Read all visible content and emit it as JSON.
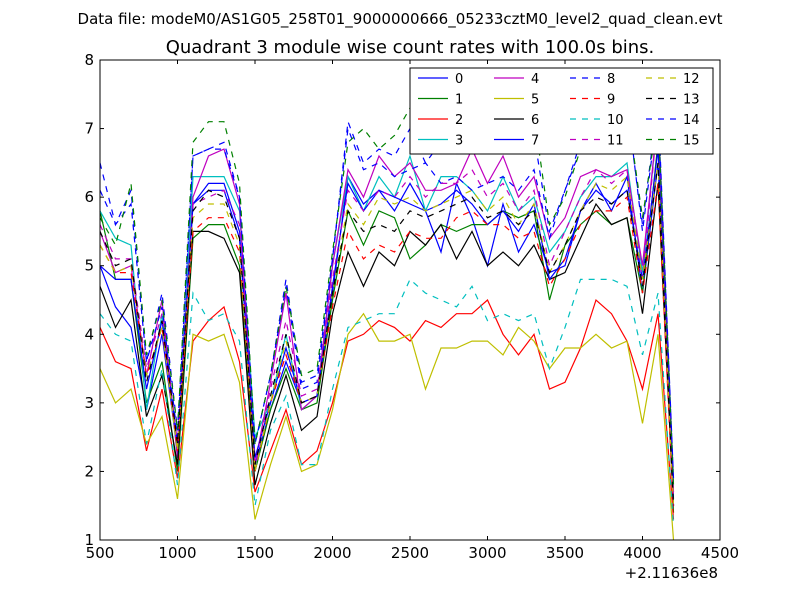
{
  "header": {
    "suptitle": "Data file: modeM0/AS1G05_258T01_9000000666_05233cztM0_level2_quad_clean.evt"
  },
  "chart_data": {
    "type": "line",
    "title": "Quadrant 3 module wise count rates with 100.0s bins.",
    "xlabel": "",
    "ylabel": "",
    "x_offset_label": "+2.11636e8",
    "xlim": [
      500,
      4500
    ],
    "ylim": [
      1,
      8
    ],
    "xticks": [
      500,
      1000,
      1500,
      2000,
      2500,
      3000,
      3500,
      4000,
      4500
    ],
    "yticks": [
      1,
      2,
      3,
      4,
      5,
      6,
      7,
      8
    ],
    "grid": false,
    "legend_position": "top-right",
    "legend_columns": 4,
    "x": [
      500,
      600,
      700,
      800,
      900,
      1000,
      1100,
      1200,
      1300,
      1400,
      1500,
      1600,
      1700,
      1800,
      1900,
      2000,
      2100,
      2200,
      2300,
      2400,
      2500,
      2600,
      2700,
      2800,
      2900,
      3000,
      3100,
      3200,
      3300,
      3400,
      3500,
      3600,
      3700,
      3800,
      3900,
      4000,
      4100,
      4200
    ],
    "series": [
      {
        "name": "0",
        "color": "#0000ff",
        "dashed": false,
        "values": [
          5.0,
          4.4,
          4.1,
          2.9,
          4.0,
          2.3,
          5.9,
          6.2,
          6.2,
          5.5,
          2.1,
          2.9,
          3.6,
          3.0,
          3.1,
          4.6,
          6.3,
          5.9,
          6.1,
          5.8,
          6.2,
          5.8,
          5.2,
          6.2,
          5.7,
          5.0,
          5.9,
          5.2,
          5.6,
          4.9,
          5.0,
          5.8,
          6.2,
          5.8,
          6.3,
          4.6,
          6.5,
          1.5
        ]
      },
      {
        "name": "1",
        "color": "#008000",
        "dashed": false,
        "values": [
          5.8,
          4.8,
          4.8,
          3.0,
          3.6,
          2.0,
          5.4,
          5.6,
          5.6,
          5.0,
          2.0,
          2.9,
          3.5,
          2.9,
          3.0,
          4.5,
          5.8,
          5.3,
          5.8,
          5.7,
          5.1,
          5.3,
          5.6,
          5.5,
          5.6,
          5.6,
          5.8,
          5.7,
          5.8,
          4.5,
          5.3,
          5.6,
          5.8,
          5.6,
          5.7,
          4.6,
          6.8,
          1.4
        ]
      },
      {
        "name": "2",
        "color": "#ff0000",
        "dashed": false,
        "values": [
          4.1,
          3.6,
          3.5,
          2.3,
          3.2,
          1.9,
          3.9,
          4.2,
          4.4,
          3.6,
          1.7,
          2.3,
          2.9,
          2.1,
          2.3,
          3.0,
          3.9,
          4.0,
          4.2,
          4.1,
          3.9,
          4.2,
          4.1,
          4.3,
          4.3,
          4.5,
          4.0,
          3.7,
          4.0,
          3.2,
          3.3,
          3.8,
          4.5,
          4.3,
          3.9,
          3.2,
          4.3,
          1.3
        ]
      },
      {
        "name": "3",
        "color": "#00bfbf",
        "dashed": false,
        "values": [
          5.8,
          5.4,
          5.3,
          2.9,
          4.3,
          2.2,
          6.3,
          6.3,
          6.3,
          5.8,
          2.5,
          3.0,
          4.0,
          2.9,
          3.1,
          5.0,
          6.3,
          5.8,
          6.3,
          6.0,
          6.6,
          5.8,
          6.3,
          6.3,
          6.1,
          5.8,
          6.3,
          5.8,
          6.0,
          5.2,
          5.5,
          6.0,
          6.3,
          6.3,
          6.5,
          4.9,
          7.2,
          1.6
        ]
      },
      {
        "name": "4",
        "color": "#bf00bf",
        "dashed": false,
        "values": [
          5.5,
          4.9,
          5.0,
          3.4,
          4.5,
          2.2,
          6.0,
          6.6,
          6.7,
          5.9,
          2.1,
          3.3,
          4.6,
          2.9,
          3.1,
          5.0,
          6.4,
          6.0,
          6.6,
          6.3,
          6.5,
          6.1,
          6.1,
          6.2,
          6.7,
          6.2,
          6.6,
          6.0,
          6.3,
          5.4,
          5.7,
          6.3,
          6.4,
          6.3,
          6.4,
          5.0,
          7.2,
          1.7
        ]
      },
      {
        "name": "5",
        "color": "#bfbf00",
        "dashed": false,
        "values": [
          3.5,
          3.0,
          3.2,
          2.4,
          2.8,
          1.6,
          4.0,
          3.9,
          4.0,
          3.3,
          1.3,
          2.1,
          2.8,
          2.0,
          2.1,
          2.9,
          4.0,
          4.3,
          3.9,
          3.9,
          4.0,
          3.2,
          3.8,
          3.8,
          3.9,
          3.9,
          3.7,
          4.1,
          3.9,
          3.5,
          3.8,
          3.8,
          4.0,
          3.8,
          3.9,
          2.7,
          4.0,
          1.0
        ]
      },
      {
        "name": "6",
        "color": "#000000",
        "dashed": false,
        "values": [
          4.7,
          4.1,
          4.5,
          2.8,
          3.4,
          2.1,
          5.5,
          5.5,
          5.4,
          4.9,
          1.8,
          2.7,
          3.4,
          2.6,
          2.8,
          4.3,
          5.2,
          4.7,
          5.2,
          5.0,
          5.5,
          5.3,
          5.6,
          5.1,
          5.5,
          5.0,
          5.2,
          5.0,
          5.3,
          4.8,
          4.9,
          5.4,
          5.9,
          5.6,
          5.7,
          4.3,
          6.2,
          1.5
        ]
      },
      {
        "name": "7",
        "color": "#0000ff",
        "dashed": false,
        "values": [
          5.0,
          4.8,
          4.8,
          3.2,
          4.2,
          2.4,
          5.9,
          6.1,
          6.1,
          5.4,
          2.2,
          3.0,
          3.8,
          3.0,
          3.1,
          4.7,
          6.2,
          5.8,
          6.1,
          6.0,
          5.9,
          5.8,
          5.9,
          6.1,
          5.9,
          5.6,
          5.8,
          5.5,
          5.9,
          4.8,
          5.1,
          5.8,
          6.1,
          5.9,
          6.1,
          4.8,
          6.7,
          1.5
        ]
      },
      {
        "name": "8",
        "color": "#0000ff",
        "dashed": true,
        "values": [
          6.1,
          5.6,
          5.9,
          3.6,
          4.4,
          2.5,
          6.6,
          6.7,
          6.8,
          6.0,
          2.4,
          3.4,
          4.7,
          3.2,
          3.3,
          5.1,
          7.0,
          6.4,
          6.5,
          6.3,
          6.4,
          6.5,
          6.2,
          6.3,
          6.1,
          6.2,
          6.3,
          6.1,
          6.4,
          5.4,
          6.1,
          6.8,
          7.0,
          7.2,
          7.4,
          5.5,
          7.3,
          1.9
        ]
      },
      {
        "name": "9",
        "color": "#ff0000",
        "dashed": true,
        "values": [
          5.3,
          4.9,
          4.9,
          3.4,
          4.1,
          2.3,
          5.5,
          5.7,
          5.7,
          5.2,
          2.0,
          3.0,
          3.7,
          3.0,
          3.1,
          4.4,
          5.5,
          5.1,
          5.3,
          5.2,
          5.5,
          5.4,
          5.4,
          5.7,
          5.8,
          5.6,
          5.6,
          5.4,
          5.5,
          4.7,
          5.1,
          5.6,
          5.8,
          5.8,
          6.0,
          4.6,
          6.2,
          1.4
        ]
      },
      {
        "name": "10",
        "color": "#00bfbf",
        "dashed": true,
        "values": [
          4.3,
          4.0,
          3.9,
          2.4,
          3.5,
          1.8,
          4.6,
          4.2,
          4.3,
          3.9,
          1.5,
          2.6,
          3.1,
          2.1,
          2.1,
          3.2,
          4.1,
          4.2,
          4.3,
          4.3,
          4.8,
          4.6,
          4.5,
          4.4,
          4.7,
          4.2,
          4.3,
          4.2,
          4.3,
          3.5,
          4.1,
          4.8,
          4.8,
          4.8,
          4.7,
          3.7,
          4.6,
          1.2
        ]
      },
      {
        "name": "11",
        "color": "#bf00bf",
        "dashed": true,
        "values": [
          5.6,
          5.1,
          5.1,
          3.5,
          4.3,
          2.4,
          5.9,
          6.0,
          6.1,
          5.6,
          2.1,
          3.2,
          4.2,
          3.1,
          3.2,
          4.8,
          6.1,
          5.8,
          6.1,
          6.0,
          6.3,
          6.0,
          6.2,
          6.2,
          6.4,
          6.0,
          6.2,
          5.8,
          6.1,
          5.0,
          5.5,
          6.0,
          6.4,
          6.2,
          6.4,
          4.8,
          7.2,
          1.6
        ]
      },
      {
        "name": "12",
        "color": "#bfbf00",
        "dashed": true,
        "values": [
          5.3,
          4.9,
          5.0,
          3.4,
          4.1,
          2.3,
          5.7,
          5.9,
          5.9,
          5.3,
          2.0,
          3.0,
          3.9,
          3.0,
          3.1,
          4.6,
          5.9,
          5.6,
          6.0,
          5.9,
          6.0,
          5.8,
          5.9,
          6.0,
          6.1,
          5.8,
          6.0,
          5.6,
          5.9,
          4.9,
          5.3,
          5.8,
          6.2,
          6.1,
          6.3,
          4.8,
          6.5,
          1.5
        ]
      },
      {
        "name": "13",
        "color": "#000000",
        "dashed": true,
        "values": [
          5.5,
          5.0,
          5.1,
          3.3,
          4.2,
          2.4,
          5.8,
          6.1,
          6.0,
          5.4,
          2.1,
          3.1,
          4.0,
          3.0,
          3.1,
          4.6,
          5.8,
          5.5,
          5.6,
          5.5,
          5.8,
          5.7,
          5.8,
          5.9,
          6.0,
          5.7,
          5.8,
          5.6,
          5.8,
          4.9,
          5.3,
          5.8,
          6.0,
          5.9,
          6.1,
          4.7,
          6.5,
          1.5
        ]
      },
      {
        "name": "14",
        "color": "#0000ff",
        "dashed": true,
        "values": [
          6.5,
          5.6,
          6.1,
          3.6,
          4.6,
          2.6,
          6.6,
          6.7,
          6.7,
          6.0,
          2.4,
          3.4,
          4.8,
          3.3,
          3.4,
          5.1,
          7.1,
          6.5,
          6.7,
          6.6,
          7.0,
          6.5,
          6.8,
          6.9,
          7.0,
          6.8,
          6.9,
          6.7,
          6.9,
          5.5,
          6.1,
          6.7,
          7.0,
          7.2,
          7.3,
          5.6,
          7.4,
          1.9
        ]
      },
      {
        "name": "15",
        "color": "#008000",
        "dashed": true,
        "values": [
          5.7,
          5.3,
          6.2,
          3.7,
          4.5,
          2.6,
          6.8,
          7.1,
          7.1,
          6.2,
          2.4,
          3.4,
          4.7,
          3.4,
          3.5,
          5.2,
          6.8,
          7.0,
          6.7,
          6.9,
          7.3,
          6.7,
          7.0,
          7.1,
          6.9,
          6.9,
          7.0,
          6.8,
          7.2,
          5.6,
          6.0,
          6.7,
          7.1,
          7.3,
          7.3,
          5.7,
          7.2,
          1.8
        ]
      }
    ]
  }
}
